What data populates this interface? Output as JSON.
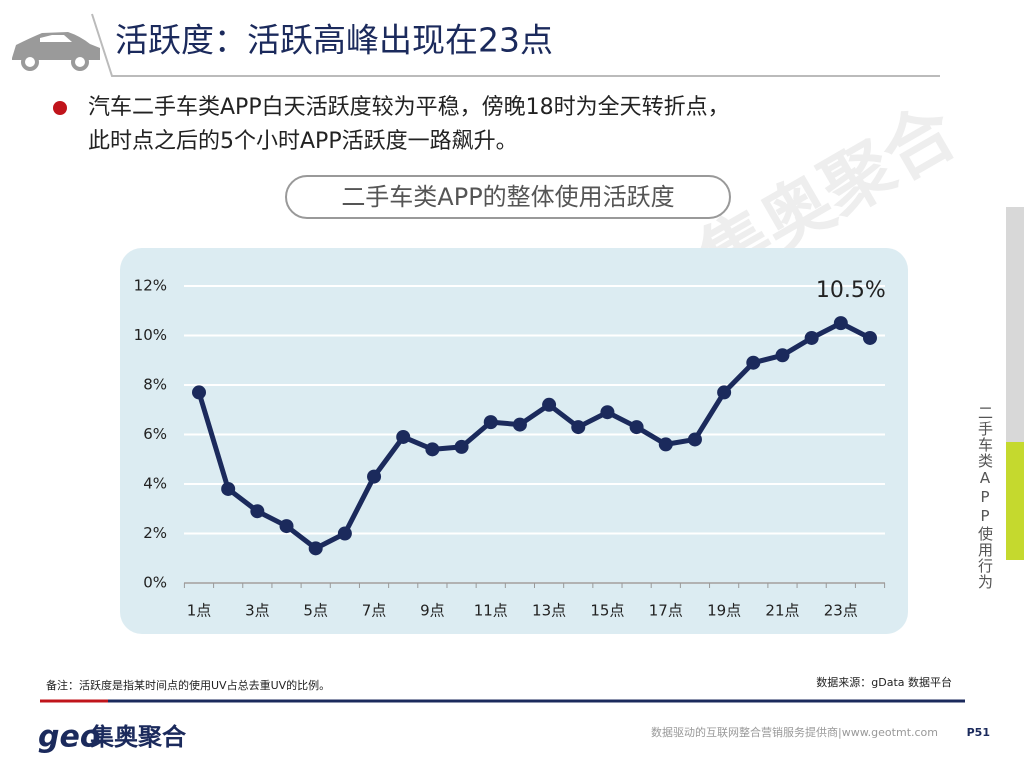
{
  "header": {
    "title": "活跃度：活跃高峰出现在23点"
  },
  "bullet": {
    "lines": [
      "汽车二手车类APP白天活跃度较为平稳，傍晚18时为全天转折点，",
      "此时点之后的5个小时APP活跃度一路飙升。"
    ]
  },
  "watermark": "集奥聚合",
  "sidebar": "二手车类APP使用行为",
  "chart_data": {
    "type": "line",
    "title": "二手车类APP的整体使用活跃度",
    "categories": [
      "1点",
      null,
      "3点",
      null,
      "5点",
      null,
      "7点",
      null,
      "9点",
      null,
      "11点",
      null,
      "13点",
      null,
      "15点",
      null,
      "17点",
      null,
      "19点",
      null,
      "21点",
      null,
      "23点",
      null
    ],
    "series": [
      {
        "color": "#1b2a5c",
        "values": [
          7.7,
          3.8,
          2.9,
          2.3,
          1.4,
          2.0,
          4.3,
          5.9,
          5.4,
          5.5,
          6.5,
          6.4,
          7.2,
          6.3,
          6.9,
          6.3,
          5.6,
          5.8,
          7.7,
          8.9,
          9.2,
          9.9,
          10.5,
          9.9
        ],
        "value_labels": [
          null,
          null,
          null,
          null,
          null,
          null,
          null,
          null,
          null,
          null,
          null,
          null,
          null,
          null,
          null,
          null,
          null,
          null,
          null,
          null,
          null,
          null,
          "10.5%",
          null
        ]
      }
    ],
    "ylim": [
      0,
      12
    ],
    "yticks": [
      {
        "value": 0,
        "label": "0%"
      },
      {
        "value": 2,
        "label": "2%"
      },
      {
        "value": 4,
        "label": "4%"
      },
      {
        "value": 6,
        "label": "6%"
      },
      {
        "value": 8,
        "label": "8%"
      },
      {
        "value": 10,
        "label": "10%"
      },
      {
        "value": 12,
        "label": "12%"
      }
    ],
    "grid": true
  },
  "footer": {
    "note": "备注：活跃度是指某时间点的使用UV占总去重UV的比例。",
    "source": "数据来源：gData  数据平台",
    "logo_mark": "geo",
    "logo_text": "集奥聚合",
    "tagline": "数据驱动的互联网整合营销服务提供商|www.geotmt.com",
    "page": "P51"
  }
}
